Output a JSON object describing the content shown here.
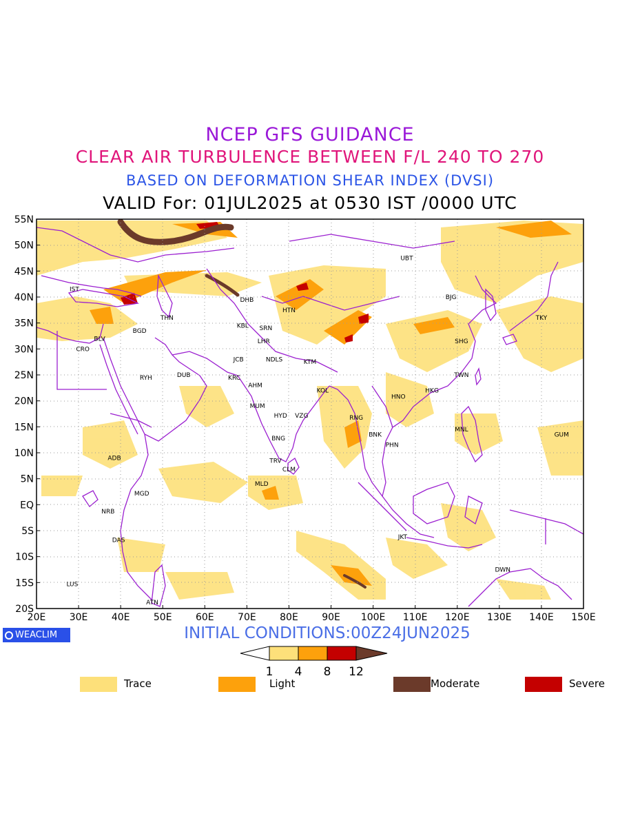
{
  "header": {
    "title_1": "NCEP GFS GUIDANCE",
    "title_2": "CLEAR AIR TURBULENCE BETWEEN F/L 240 TO 270",
    "title_3": "BASED ON DEFORMATION SHEAR INDEX (DVSI)",
    "title_4": "VALID For: 01JUL2025 at 0530 IST /0000 UTC"
  },
  "colors": {
    "title_1": "#9a18d8",
    "title_2": "#e0157a",
    "title_3": "#2b54e6",
    "border": "#9b1fd0",
    "trace": "#fde07a",
    "light": "#fda10c",
    "moderate": "#6b3a2a",
    "severe": "#c40000",
    "initial": "#4a6ee6",
    "logo": "#2a50e8"
  },
  "map": {
    "lat_labels": [
      "55N",
      "50N",
      "45N",
      "40N",
      "35N",
      "30N",
      "25N",
      "20N",
      "15N",
      "10N",
      "5N",
      "EQ",
      "5S",
      "10S",
      "15S",
      "20S"
    ],
    "lon_labels": [
      "20E",
      "30E",
      "40E",
      "50E",
      "60E",
      "70E",
      "80E",
      "90E",
      "100E",
      "110E",
      "120E",
      "130E",
      "140E",
      "150E"
    ],
    "extent": {
      "lon_min": 20,
      "lon_max": 150,
      "lat_min": -20,
      "lat_max": 55
    },
    "cities": [
      {
        "code": "UBT",
        "lon": 108,
        "lat": 47.5
      },
      {
        "code": "IST",
        "lon": 29,
        "lat": 41.5
      },
      {
        "code": "DHB",
        "lon": 70,
        "lat": 39.5
      },
      {
        "code": "BJG",
        "lon": 118.5,
        "lat": 40
      },
      {
        "code": "HTN",
        "lon": 80,
        "lat": 37.5
      },
      {
        "code": "THN",
        "lon": 51,
        "lat": 36
      },
      {
        "code": "KBL",
        "lon": 69,
        "lat": 34.5
      },
      {
        "code": "SRN",
        "lon": 74.5,
        "lat": 34
      },
      {
        "code": "TKY",
        "lon": 140,
        "lat": 36
      },
      {
        "code": "BGD",
        "lon": 44.5,
        "lat": 33.5
      },
      {
        "code": "BLV",
        "lon": 35,
        "lat": 32
      },
      {
        "code": "LHR",
        "lon": 74,
        "lat": 31.5
      },
      {
        "code": "SHG",
        "lon": 121,
        "lat": 31.5
      },
      {
        "code": "CRO",
        "lon": 31,
        "lat": 30
      },
      {
        "code": "JCB",
        "lon": 68,
        "lat": 28
      },
      {
        "code": "NDLS",
        "lon": 76.5,
        "lat": 28
      },
      {
        "code": "KTM",
        "lon": 85,
        "lat": 27.5
      },
      {
        "code": "RYH",
        "lon": 46,
        "lat": 24.5
      },
      {
        "code": "DUB",
        "lon": 55,
        "lat": 25
      },
      {
        "code": "KRC",
        "lon": 67,
        "lat": 24.5
      },
      {
        "code": "TWN",
        "lon": 121,
        "lat": 25
      },
      {
        "code": "AHM",
        "lon": 72,
        "lat": 23
      },
      {
        "code": "KOL",
        "lon": 88,
        "lat": 22
      },
      {
        "code": "HKG",
        "lon": 114,
        "lat": 22
      },
      {
        "code": "HNO",
        "lon": 106,
        "lat": 20.8
      },
      {
        "code": "MUM",
        "lon": 72.5,
        "lat": 19
      },
      {
        "code": "HYD",
        "lon": 78,
        "lat": 17.2
      },
      {
        "code": "VZG",
        "lon": 83,
        "lat": 17.2
      },
      {
        "code": "RNG",
        "lon": 96,
        "lat": 16.8
      },
      {
        "code": "MNL",
        "lon": 121,
        "lat": 14.5
      },
      {
        "code": "BNK",
        "lon": 100.5,
        "lat": 13.5
      },
      {
        "code": "GUM",
        "lon": 144.8,
        "lat": 13.5
      },
      {
        "code": "BNG",
        "lon": 77.5,
        "lat": 12.8
      },
      {
        "code": "PHN",
        "lon": 104.5,
        "lat": 11.5
      },
      {
        "code": "ADB",
        "lon": 38.5,
        "lat": 9
      },
      {
        "code": "TRV",
        "lon": 76.8,
        "lat": 8.5
      },
      {
        "code": "CLM",
        "lon": 80,
        "lat": 6.8
      },
      {
        "code": "MLD",
        "lon": 73.5,
        "lat": 4
      },
      {
        "code": "MGD",
        "lon": 45,
        "lat": 2.2
      },
      {
        "code": "NRB",
        "lon": 37,
        "lat": -1.3
      },
      {
        "code": "DAS",
        "lon": 39.5,
        "lat": -6.8
      },
      {
        "code": "JKT",
        "lon": 107,
        "lat": -6.2
      },
      {
        "code": "DWN",
        "lon": 130.8,
        "lat": -12.5
      },
      {
        "code": "LUS",
        "lon": 28.5,
        "lat": -15.3
      },
      {
        "code": "ATN",
        "lon": 47.5,
        "lat": -18.8
      }
    ]
  },
  "colorbar": {
    "ticks": [
      "1",
      "4",
      "8",
      "12"
    ]
  },
  "legend": {
    "trace": "Trace",
    "light": "Light",
    "moderate": "Moderate",
    "severe": "Severe"
  },
  "footer": {
    "initial_conditions": "INITIAL CONDITIONS:00Z24JUN2025",
    "logo_text": "WEACLIM"
  }
}
